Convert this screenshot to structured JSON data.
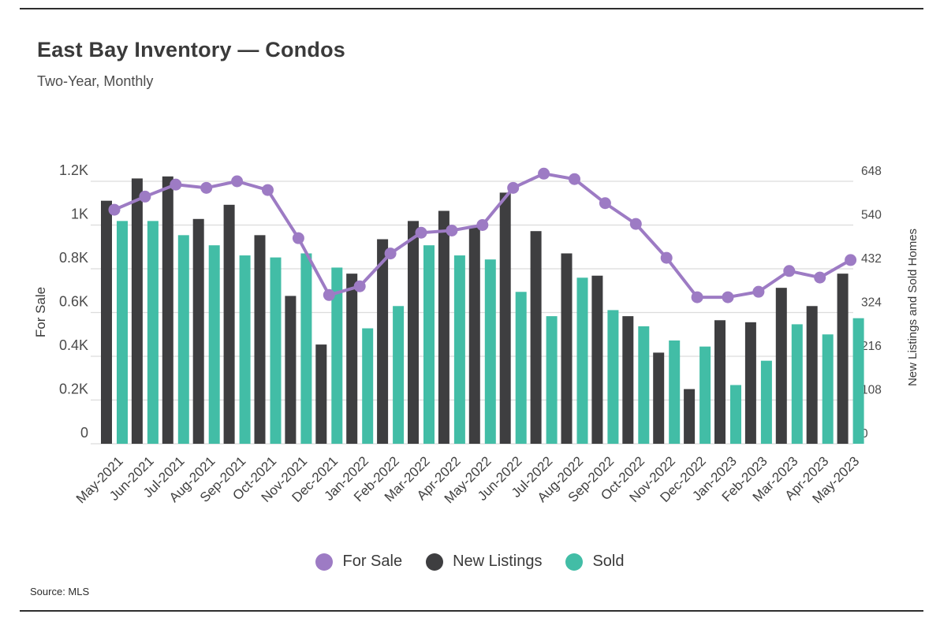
{
  "header": {
    "title": "East Bay Inventory — Condos",
    "subtitle": "Two-Year, Monthly"
  },
  "footer": {
    "source": "Source: MLS"
  },
  "chart_data": {
    "type": "combo",
    "title": "East Bay Inventory — Condos",
    "subtitle": "Two-Year, Monthly",
    "grid": "horizontal",
    "legend_position": "bottom",
    "categories": [
      "May-2021",
      "Jun-2021",
      "Jul-2021",
      "Aug-2021",
      "Sep-2021",
      "Oct-2021",
      "Nov-2021",
      "Dec-2021",
      "Jan-2022",
      "Feb-2022",
      "Mar-2022",
      "Apr-2022",
      "May-2022",
      "Jun-2022",
      "Jul-2022",
      "Aug-2022",
      "Sep-2022",
      "Oct-2022",
      "Nov-2022",
      "Dec-2022",
      "Jan-2023",
      "Feb-2023",
      "Mar-2023",
      "Apr-2023",
      "May-2023"
    ],
    "series": [
      {
        "name": "For Sale",
        "type": "line",
        "axis": "left",
        "color": "#9d7bc4",
        "values": [
          1070,
          1130,
          1185,
          1170,
          1200,
          1160,
          940,
          680,
          720,
          870,
          965,
          975,
          1000,
          1170,
          1235,
          1210,
          1100,
          1005,
          850,
          670,
          670,
          695,
          790,
          760,
          840
        ]
      },
      {
        "name": "New Listings",
        "type": "bar",
        "axis": "right",
        "color": "#3e3e40",
        "values": [
          600,
          655,
          660,
          555,
          590,
          515,
          365,
          245,
          420,
          505,
          550,
          575,
          535,
          620,
          525,
          470,
          415,
          315,
          225,
          135,
          305,
          300,
          385,
          340,
          420
        ]
      },
      {
        "name": "Sold",
        "type": "bar",
        "axis": "right",
        "color": "#42bda6",
        "values": [
          550,
          550,
          515,
          490,
          465,
          460,
          470,
          435,
          285,
          340,
          490,
          465,
          455,
          375,
          315,
          410,
          330,
          290,
          255,
          240,
          145,
          205,
          295,
          270,
          310
        ]
      }
    ],
    "axes": {
      "left": {
        "label": "For Sale",
        "max": 1200,
        "ticks": [
          0,
          200,
          400,
          600,
          800,
          1000,
          1200
        ],
        "tick_labels": [
          "0",
          "0.2K",
          "0.4K",
          "0.6K",
          "0.8K",
          "1K",
          "1.2K"
        ]
      },
      "right": {
        "label": "New Listings and Sold Homes",
        "max": 648,
        "ticks": [
          0,
          108,
          216,
          324,
          432,
          540,
          648
        ],
        "tick_labels": [
          "0",
          "108",
          "216",
          "324",
          "432",
          "540",
          "648"
        ]
      }
    },
    "colors": {
      "grid": "#dcdcdc",
      "tick_text": "#4a4a4a",
      "axis_title_text": "#3a3a3a"
    }
  }
}
